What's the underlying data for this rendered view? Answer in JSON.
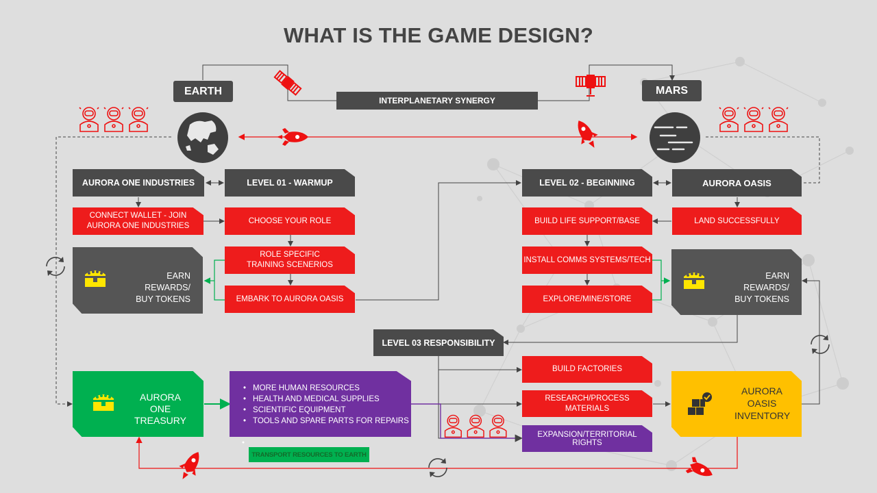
{
  "title": "WHAT IS THE GAME DESIGN?",
  "colors": {
    "red": "#ee1c1c",
    "dark": "#4a4a4a",
    "green": "#00b050",
    "purple": "#7030a0",
    "gold": "#ffc000",
    "chest": "#ffe600"
  },
  "planets": {
    "earth": "EARTH",
    "mars": "MARS"
  },
  "synergy": "INTERPLANETARY SYNERGY",
  "left": {
    "industries": "AURORA ONE INDUSTRIES",
    "level1": "LEVEL 01 - WARMUP",
    "connect": "CONNECT WALLET - JOIN AURORA ONE INDUSTRIES",
    "choose": "CHOOSE YOUR ROLE",
    "training": "ROLE SPECIFIC TRAINING SCENERIOS",
    "embark": "EMBARK TO AURORA OASIS",
    "rewards": "EARN REWARDS/ BUY TOKENS"
  },
  "right": {
    "level2": "LEVEL 02 - BEGINNING",
    "oasis": "AURORA OASIS",
    "land": "LAND SUCCESSFULLY",
    "life": "BUILD LIFE SUPPORT/BASE",
    "comms": "INSTALL COMMS SYSTEMS/TECH",
    "explore": "EXPLORE/MINE/STORE",
    "rewards": "EARN REWARDS/ BUY TOKENS"
  },
  "level3": {
    "title": "LEVEL 03  RESPONSIBILITY",
    "factories": "BUILD FACTORIES",
    "research": "RESEARCH/PROCESS MATERIALS",
    "expansion": "EXPANSION/TERRITORIAL RIGHTS"
  },
  "treasury": "AURORA ONE TREASURY",
  "inventory": "AURORA OASIS INVENTORY",
  "resources": [
    "MORE HUMAN RESOURCES",
    "HEALTH AND MEDICAL SUPPLIES",
    "SCIENTIFIC EQUIPMENT",
    "TOOLS AND SPARE PARTS FOR REPAIRS"
  ],
  "transport": "TRANSPORT RESOURCES TO EARTH",
  "icons": [
    "satellite-icon",
    "astronaut-icon",
    "rocket-icon",
    "earth-globe-icon",
    "mars-planet-icon",
    "treasure-chest-icon",
    "cycle-icon",
    "boxes-icon"
  ]
}
